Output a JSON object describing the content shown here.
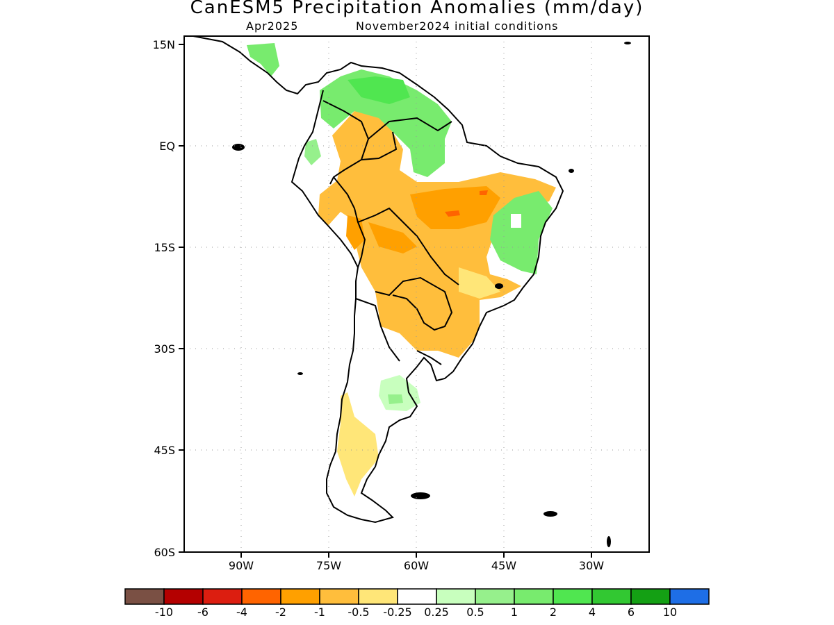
{
  "title": "CanESM5 Precipitation Anomalies (mm/day)",
  "subtitle_left": "Apr2025",
  "subtitle_right": "November2024 initial conditions",
  "lat_ticks": [
    "15N",
    "EQ",
    "15S",
    "30S",
    "45S",
    "60S"
  ],
  "lon_ticks": [
    "90W",
    "75W",
    "60W",
    "45W",
    "30W"
  ],
  "colorbar": {
    "colors": [
      "#7a5044",
      "#b40000",
      "#dc1e10",
      "#ff6400",
      "#ffa000",
      "#ffbe3c",
      "#ffe678",
      "#ffffff",
      "#c8ffbe",
      "#96f08c",
      "#78eb6e",
      "#50e650",
      "#32c832",
      "#14a014",
      "#1e6ee6"
    ],
    "labels": [
      "-10",
      "-6",
      "-4",
      "-2",
      "-1",
      "-0.5",
      "-0.25",
      "0.25",
      "0.5",
      "1",
      "2",
      "4",
      "6",
      "10"
    ]
  }
}
